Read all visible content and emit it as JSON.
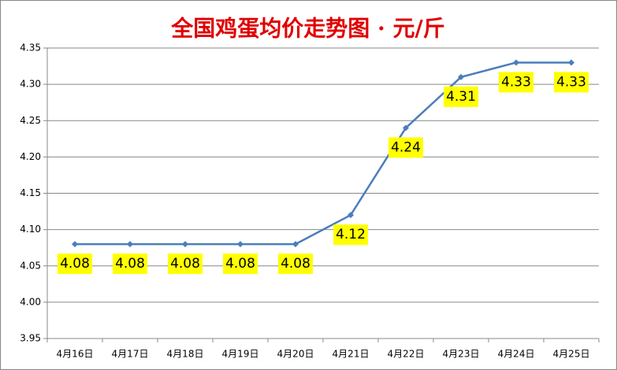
{
  "chart_data": {
    "type": "line",
    "title": "全国鸡蛋均价走势图 · 元/斤",
    "categories": [
      "4月16日",
      "4月17日",
      "4月18日",
      "4月19日",
      "4月20日",
      "4月21日",
      "4月22日",
      "4月23日",
      "4月24日",
      "4月25日"
    ],
    "values": [
      4.08,
      4.08,
      4.08,
      4.08,
      4.08,
      4.12,
      4.24,
      4.31,
      4.33,
      4.33
    ],
    "color": "#4a7ebb",
    "ylim": [
      3.95,
      4.35
    ],
    "yticks": [
      3.95,
      {
        "value": 4.0,
        "label": "4.00"
      },
      4.05,
      {
        "value": 4.1,
        "label": "4.10"
      },
      4.15,
      {
        "value": 4.2,
        "label": "4.20"
      },
      4.25,
      {
        "value": 4.3,
        "label": "4.30"
      },
      4.35
    ],
    "grid": true
  }
}
